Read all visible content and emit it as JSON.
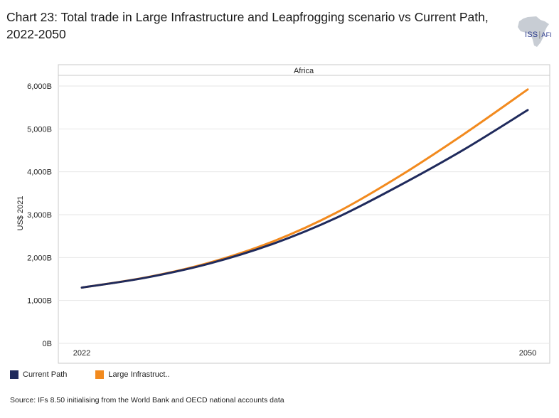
{
  "header": {
    "title": "Chart 23: Total trade in Large Infrastructure and Leapfrogging scenario vs Current Path, 2022-2050",
    "logo_text": "ISS",
    "logo_subtext": "AFI"
  },
  "chart_data": {
    "type": "line",
    "title": "Chart 23: Total trade in Large Infrastructure and Leapfrogging scenario vs Current Path, 2022-2050",
    "panel_label": "Africa",
    "xlabel": "",
    "ylabel": "US$ 2021",
    "x": [
      2022,
      2026,
      2030,
      2034,
      2038,
      2042,
      2046,
      2050
    ],
    "x_tick_labels": [
      "2022",
      "2050"
    ],
    "ylim": [
      0,
      6000
    ],
    "y_ticks": [
      0,
      1000,
      2000,
      3000,
      4000,
      5000,
      6000
    ],
    "y_tick_labels": [
      "0B",
      "1,000B",
      "2,000B",
      "3,000B",
      "4,000B",
      "5,000B",
      "6,000B"
    ],
    "grid": true,
    "legend_position": "bottom-left",
    "series": [
      {
        "name": "Current Path",
        "color": "#1f2a5c",
        "values": [
          1300,
          1530,
          1860,
          2320,
          2930,
          3690,
          4520,
          5440
        ]
      },
      {
        "name": "Large Infrastruct..",
        "color": "#f28a1e",
        "values": [
          1300,
          1535,
          1880,
          2375,
          3050,
          3910,
          4880,
          5920
        ]
      }
    ]
  },
  "legend": {
    "items": [
      {
        "label": "Current Path",
        "color": "#1f2a5c"
      },
      {
        "label": "Large Infrastruct..",
        "color": "#f28a1e"
      }
    ]
  },
  "footer": {
    "source": "Source: IFs 8.50 initialising from the World Bank and OECD national accounts data"
  }
}
